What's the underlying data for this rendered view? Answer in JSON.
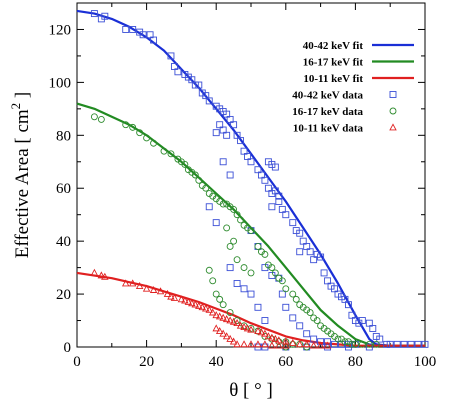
{
  "chart_data": {
    "type": "scatter",
    "xlabel": "θ [ ° ]",
    "ylabel": "Effective Area [ cm",
    "ylabel_sup": "2",
    "ylabel_end": " ]",
    "xlim": [
      0,
      100
    ],
    "ylim": [
      0,
      130
    ],
    "x_ticks": [
      "0",
      "20",
      "40",
      "60",
      "80",
      "100"
    ],
    "y_ticks": [
      "0",
      "20",
      "40",
      "60",
      "80",
      "100",
      "120"
    ],
    "legend_position": "top-right",
    "fits": [
      {
        "name": "40-42 keV fit",
        "color": "#1a2fd6",
        "x": [
          0,
          5,
          10,
          15,
          20,
          25,
          30,
          35,
          40,
          45,
          50,
          55,
          60,
          65,
          70,
          75,
          80,
          84,
          86,
          90,
          95,
          100
        ],
        "y": [
          127,
          126,
          124,
          121,
          117,
          112,
          105,
          98,
          90,
          82,
          73,
          64,
          55,
          45,
          35,
          24,
          12,
          3,
          1,
          0.5,
          0.5,
          0.5
        ]
      },
      {
        "name": "16-17 keV fit",
        "color": "#228b22",
        "x": [
          0,
          5,
          10,
          15,
          20,
          25,
          30,
          35,
          40,
          45,
          50,
          55,
          60,
          65,
          70,
          75,
          80,
          84,
          86,
          90,
          95,
          100
        ],
        "y": [
          92,
          90,
          87,
          84,
          80,
          75,
          70,
          64,
          58,
          52,
          45,
          38,
          30,
          22,
          14,
          8,
          3,
          1,
          0.5,
          0.5,
          0.5,
          0.5
        ]
      },
      {
        "name": "10-11 keV fit",
        "color": "#e02020",
        "x": [
          0,
          5,
          10,
          15,
          20,
          25,
          30,
          35,
          40,
          45,
          50,
          55,
          60,
          65,
          70,
          75,
          80,
          85,
          90,
          95,
          100
        ],
        "y": [
          28,
          27,
          26,
          24.5,
          23,
          21,
          19,
          17,
          14.5,
          12,
          9,
          6.5,
          4,
          2.5,
          1.5,
          1,
          0.5,
          0.5,
          0.5,
          0.5,
          0.5
        ]
      }
    ],
    "data": [
      {
        "name": "40-42 keV data",
        "color": "#3b4fd6",
        "marker": "square",
        "points": [
          [
            5,
            126
          ],
          [
            7,
            124
          ],
          [
            8,
            125
          ],
          [
            14,
            120
          ],
          [
            16,
            120
          ],
          [
            18,
            119
          ],
          [
            19,
            118
          ],
          [
            21,
            118
          ],
          [
            22,
            116
          ],
          [
            27,
            110
          ],
          [
            28,
            106
          ],
          [
            29,
            104
          ],
          [
            31,
            103
          ],
          [
            32,
            102
          ],
          [
            33,
            101
          ],
          [
            34,
            99
          ],
          [
            35,
            99
          ],
          [
            36,
            96
          ],
          [
            37,
            95
          ],
          [
            38,
            93
          ],
          [
            40,
            91
          ],
          [
            41,
            90
          ],
          [
            42,
            89
          ],
          [
            43,
            88
          ],
          [
            44,
            86
          ],
          [
            45,
            84
          ],
          [
            41,
            84
          ],
          [
            42,
            82
          ],
          [
            43,
            80
          ],
          [
            40,
            81
          ],
          [
            46,
            80
          ],
          [
            47,
            78
          ],
          [
            48,
            74
          ],
          [
            49,
            72
          ],
          [
            50,
            70
          ],
          [
            52,
            67
          ],
          [
            53,
            65
          ],
          [
            54,
            63
          ],
          [
            55,
            70
          ],
          [
            56,
            69
          ],
          [
            57,
            68
          ],
          [
            57,
            59
          ],
          [
            58,
            57
          ],
          [
            56,
            58
          ],
          [
            55,
            60
          ],
          [
            58,
            55
          ],
          [
            59,
            52
          ],
          [
            60,
            50
          ],
          [
            62,
            47
          ],
          [
            63,
            44
          ],
          [
            64,
            43
          ],
          [
            64,
            36
          ],
          [
            65,
            40
          ],
          [
            66,
            38
          ],
          [
            67,
            36
          ],
          [
            68,
            33
          ],
          [
            69,
            35
          ],
          [
            70,
            34
          ],
          [
            71,
            28
          ],
          [
            72,
            25
          ],
          [
            73,
            23
          ],
          [
            74,
            22
          ],
          [
            75,
            20
          ],
          [
            76,
            19
          ],
          [
            77,
            18
          ],
          [
            78,
            16
          ],
          [
            79,
            12
          ],
          [
            80,
            10
          ],
          [
            81,
            9
          ],
          [
            82,
            10
          ],
          [
            84,
            9
          ],
          [
            85,
            7
          ],
          [
            86,
            4
          ],
          [
            87,
            3
          ],
          [
            89,
            1
          ],
          [
            90,
            1
          ],
          [
            92,
            1
          ],
          [
            94,
            1
          ],
          [
            96,
            1
          ],
          [
            98,
            1
          ],
          [
            100,
            1
          ],
          [
            56,
            53
          ],
          [
            58,
            26
          ],
          [
            59,
            20
          ],
          [
            60,
            15
          ],
          [
            62,
            11
          ],
          [
            64,
            8
          ],
          [
            66,
            5
          ],
          [
            68,
            3
          ],
          [
            70,
            2
          ],
          [
            72,
            2
          ],
          [
            74,
            1
          ],
          [
            76,
            1
          ],
          [
            78,
            1
          ],
          [
            80,
            1
          ],
          [
            52,
            0
          ],
          [
            54,
            0
          ],
          [
            60,
            0
          ],
          [
            66,
            0
          ],
          [
            72,
            0
          ],
          [
            78,
            0
          ],
          [
            84,
            0
          ],
          [
            50,
            44
          ],
          [
            52,
            38
          ],
          [
            54,
            30
          ],
          [
            56,
            27
          ],
          [
            42,
            70
          ],
          [
            44,
            65
          ],
          [
            38,
            53
          ],
          [
            40,
            47
          ],
          [
            48,
            22
          ],
          [
            50,
            20
          ],
          [
            52,
            15
          ],
          [
            54,
            10
          ],
          [
            44,
            30
          ],
          [
            46,
            24
          ]
        ]
      },
      {
        "name": "16-17 keV data",
        "color": "#2e8b2e",
        "marker": "circle",
        "points": [
          [
            5,
            87
          ],
          [
            7,
            86
          ],
          [
            14,
            84
          ],
          [
            16,
            83
          ],
          [
            18,
            81
          ],
          [
            20,
            79
          ],
          [
            22,
            77
          ],
          [
            25,
            74
          ],
          [
            27,
            73
          ],
          [
            29,
            71
          ],
          [
            30,
            70
          ],
          [
            31,
            69
          ],
          [
            32,
            67
          ],
          [
            33,
            66
          ],
          [
            34,
            65
          ],
          [
            35,
            63
          ],
          [
            36,
            61
          ],
          [
            37,
            60
          ],
          [
            38,
            58
          ],
          [
            39,
            57
          ],
          [
            40,
            56
          ],
          [
            41,
            55
          ],
          [
            42,
            54
          ],
          [
            43,
            54
          ],
          [
            44,
            53
          ],
          [
            45,
            52
          ],
          [
            46,
            50
          ],
          [
            47,
            48
          ],
          [
            48,
            46
          ],
          [
            49,
            45
          ],
          [
            50,
            44
          ],
          [
            52,
            38
          ],
          [
            53,
            36
          ],
          [
            54,
            35
          ],
          [
            55,
            31
          ],
          [
            56,
            30
          ],
          [
            57,
            28
          ],
          [
            58,
            26
          ],
          [
            59,
            25
          ],
          [
            60,
            22
          ],
          [
            62,
            20
          ],
          [
            63,
            18
          ],
          [
            64,
            16
          ],
          [
            65,
            15
          ],
          [
            66,
            14
          ],
          [
            67,
            13
          ],
          [
            68,
            11
          ],
          [
            69,
            10
          ],
          [
            70,
            8
          ],
          [
            71,
            7
          ],
          [
            72,
            6
          ],
          [
            73,
            5
          ],
          [
            74,
            4
          ],
          [
            75,
            3
          ],
          [
            76,
            3
          ],
          [
            77,
            2
          ],
          [
            78,
            2
          ],
          [
            79,
            1
          ],
          [
            80,
            1
          ],
          [
            82,
            1
          ],
          [
            84,
            1
          ],
          [
            86,
            1
          ],
          [
            38,
            29
          ],
          [
            39,
            25
          ],
          [
            40,
            20
          ],
          [
            41,
            18
          ],
          [
            42,
            16
          ],
          [
            44,
            13
          ],
          [
            46,
            10
          ],
          [
            48,
            8
          ],
          [
            50,
            7
          ],
          [
            52,
            6
          ],
          [
            54,
            4
          ],
          [
            56,
            3
          ],
          [
            58,
            2
          ],
          [
            60,
            2
          ],
          [
            62,
            1
          ],
          [
            64,
            1
          ],
          [
            44,
            38
          ],
          [
            46,
            33
          ],
          [
            48,
            30
          ],
          [
            50,
            28
          ],
          [
            43,
            45
          ],
          [
            45,
            40
          ],
          [
            60,
            0
          ],
          [
            66,
            0
          ]
        ]
      },
      {
        "name": "10-11 keV data",
        "color": "#e02020",
        "marker": "triangle",
        "points": [
          [
            5,
            28
          ],
          [
            7,
            27
          ],
          [
            8,
            26.5
          ],
          [
            14,
            24
          ],
          [
            16,
            24
          ],
          [
            18,
            23
          ],
          [
            20,
            22
          ],
          [
            22,
            21.5
          ],
          [
            24,
            21
          ],
          [
            26,
            20
          ],
          [
            27,
            19
          ],
          [
            28,
            18.5
          ],
          [
            30,
            18
          ],
          [
            31,
            17.5
          ],
          [
            32,
            17
          ],
          [
            33,
            16.5
          ],
          [
            34,
            16
          ],
          [
            35,
            15.5
          ],
          [
            36,
            15
          ],
          [
            37,
            14.5
          ],
          [
            38,
            14
          ],
          [
            39,
            13
          ],
          [
            40,
            12
          ],
          [
            41,
            11.5
          ],
          [
            42,
            11
          ],
          [
            43,
            10.5
          ],
          [
            44,
            10
          ],
          [
            45,
            9.5
          ],
          [
            46,
            9
          ],
          [
            47,
            8
          ],
          [
            48,
            7.5
          ],
          [
            49,
            7
          ],
          [
            50,
            6.5
          ],
          [
            52,
            6
          ],
          [
            53,
            5.5
          ],
          [
            54,
            5
          ],
          [
            55,
            4
          ],
          [
            56,
            3.5
          ],
          [
            57,
            3
          ],
          [
            58,
            2.5
          ],
          [
            60,
            2
          ],
          [
            62,
            1.5
          ],
          [
            64,
            1
          ],
          [
            66,
            1
          ],
          [
            68,
            0.5
          ],
          [
            70,
            0.5
          ],
          [
            72,
            0.5
          ],
          [
            40,
            7
          ],
          [
            41,
            6
          ],
          [
            42,
            5
          ],
          [
            43,
            4
          ],
          [
            44,
            3
          ],
          [
            45,
            2
          ],
          [
            46,
            1
          ],
          [
            48,
            1
          ],
          [
            50,
            1
          ],
          [
            52,
            1
          ],
          [
            54,
            1
          ],
          [
            56,
            0.5
          ],
          [
            58,
            0.5
          ],
          [
            60,
            0.5
          ]
        ]
      }
    ]
  }
}
